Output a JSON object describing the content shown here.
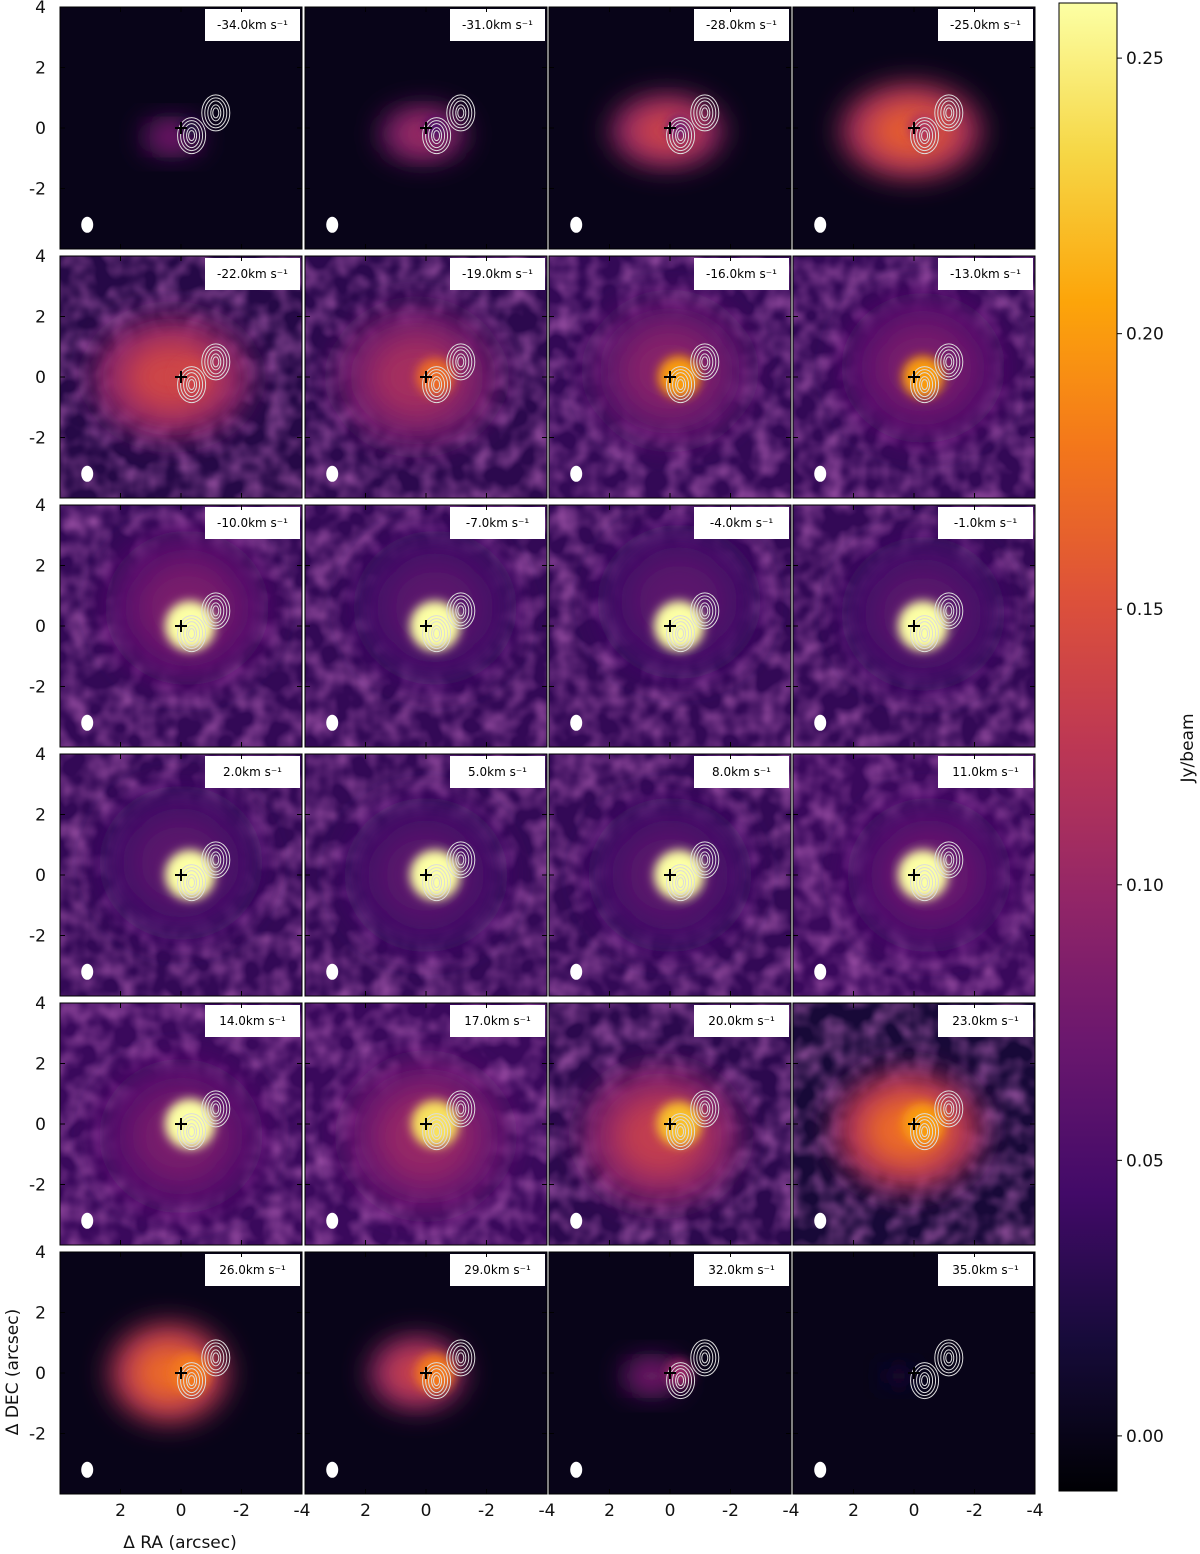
{
  "chart_data": {
    "type": "heatmap",
    "layout": {
      "rows": 6,
      "cols": 4
    },
    "xlabel": "Δ RA (arcsec)",
    "ylabel": "Δ DEC (arcsec)",
    "xlim": [
      4,
      -4
    ],
    "ylim": [
      -4,
      4
    ],
    "xticks": [
      2,
      0,
      -2,
      -4
    ],
    "xtick_labels": [
      "2",
      "0",
      "-2",
      "-4"
    ],
    "yticks": [
      4,
      2,
      0,
      -2
    ],
    "ytick_labels": [
      "4",
      "2",
      "0",
      "-2"
    ],
    "colorbar": {
      "label": "Jy/beam",
      "colormap": "inferno",
      "range": [
        -0.01,
        0.26
      ],
      "ticks": [
        0.0,
        0.05,
        0.1,
        0.15,
        0.2,
        0.25
      ],
      "tick_labels": [
        "0.00",
        "0.05",
        "0.10",
        "0.15",
        "0.20",
        "0.25"
      ]
    },
    "unit_suffix": "km s⁻¹",
    "panels": [
      {
        "velocity": -34.0,
        "label": "-34.0km s⁻¹",
        "peak": 0.09,
        "extent": [
          1.3,
          0.75
        ],
        "center": [
          0.3,
          -0.3
        ],
        "halo": 0.0,
        "core": 0.02
      },
      {
        "velocity": -31.0,
        "label": "-31.0km s⁻¹",
        "peak": 0.11,
        "extent": [
          1.9,
          1.2
        ],
        "center": [
          0.1,
          -0.2
        ],
        "halo": 0.0,
        "core": 0.05
      },
      {
        "velocity": -28.0,
        "label": "-28.0km s⁻¹",
        "peak": 0.14,
        "extent": [
          2.5,
          1.6
        ],
        "center": [
          0.1,
          -0.1
        ],
        "halo": 0.0,
        "core": 0.08
      },
      {
        "velocity": -25.0,
        "label": "-25.0km s⁻¹",
        "peak": 0.16,
        "extent": [
          3.1,
          2.1
        ],
        "center": [
          0.1,
          -0.1
        ],
        "halo": 0.0,
        "core": 0.12
      },
      {
        "velocity": -22.0,
        "label": "-22.0km s⁻¹",
        "peak": 0.14,
        "extent": [
          3.4,
          2.6
        ],
        "center": [
          0.3,
          0.0
        ],
        "halo": 0.03,
        "core": 0.14
      },
      {
        "velocity": -19.0,
        "label": "-19.0km s⁻¹",
        "peak": 0.11,
        "extent": [
          3.5,
          3.0
        ],
        "center": [
          0.3,
          0.0
        ],
        "halo": 0.035,
        "core": 0.17
      },
      {
        "velocity": -16.0,
        "label": "-16.0km s⁻¹",
        "peak": 0.09,
        "extent": [
          3.5,
          3.2
        ],
        "center": [
          0.0,
          0.2
        ],
        "halo": 0.04,
        "core": 0.2
      },
      {
        "velocity": -13.0,
        "label": "-13.0km s⁻¹",
        "peak": 0.08,
        "extent": [
          3.6,
          3.3
        ],
        "center": [
          -0.3,
          0.3
        ],
        "halo": 0.04,
        "core": 0.2
      },
      {
        "velocity": -10.0,
        "label": "-10.0km s⁻¹",
        "peak": 0.08,
        "extent": [
          3.6,
          3.4
        ],
        "center": [
          -0.2,
          0.6
        ],
        "halo": 0.04,
        "core": 0.26
      },
      {
        "velocity": -7.0,
        "label": "-7.0km s⁻¹",
        "peak": 0.06,
        "extent": [
          3.6,
          3.4
        ],
        "center": [
          -0.3,
          0.6
        ],
        "halo": 0.04,
        "core": 0.26
      },
      {
        "velocity": -4.0,
        "label": "-4.0km s⁻¹",
        "peak": 0.06,
        "extent": [
          3.6,
          3.4
        ],
        "center": [
          -0.3,
          0.8
        ],
        "halo": 0.04,
        "core": 0.26
      },
      {
        "velocity": -1.0,
        "label": "-1.0km s⁻¹",
        "peak": 0.06,
        "extent": [
          3.6,
          3.4
        ],
        "center": [
          -0.3,
          0.4
        ],
        "halo": 0.04,
        "core": 0.26
      },
      {
        "velocity": 2.0,
        "label": "2.0km s⁻¹",
        "peak": 0.06,
        "extent": [
          3.6,
          3.4
        ],
        "center": [
          0.0,
          0.4
        ],
        "halo": 0.04,
        "core": 0.26
      },
      {
        "velocity": 5.0,
        "label": "5.0km s⁻¹",
        "peak": 0.06,
        "extent": [
          3.6,
          3.4
        ],
        "center": [
          0.0,
          0.0
        ],
        "halo": 0.04,
        "core": 0.26
      },
      {
        "velocity": 8.0,
        "label": "8.0km s⁻¹",
        "peak": 0.06,
        "extent": [
          3.6,
          3.4
        ],
        "center": [
          0.0,
          0.0
        ],
        "halo": 0.04,
        "core": 0.26
      },
      {
        "velocity": 11.0,
        "label": "11.0km s⁻¹",
        "peak": 0.07,
        "extent": [
          3.6,
          3.4
        ],
        "center": [
          -0.5,
          0.0
        ],
        "halo": 0.045,
        "core": 0.26
      },
      {
        "velocity": 14.0,
        "label": "14.0km s⁻¹",
        "peak": 0.08,
        "extent": [
          3.6,
          3.4
        ],
        "center": [
          0.0,
          -0.4
        ],
        "halo": 0.045,
        "core": 0.26
      },
      {
        "velocity": 17.0,
        "label": "17.0km s⁻¹",
        "peak": 0.1,
        "extent": [
          3.6,
          3.4
        ],
        "center": [
          0.0,
          -0.4
        ],
        "halo": 0.045,
        "core": 0.24
      },
      {
        "velocity": 20.0,
        "label": "20.0km s⁻¹",
        "peak": 0.13,
        "extent": [
          3.4,
          3.0
        ],
        "center": [
          0.3,
          -0.4
        ],
        "halo": 0.035,
        "core": 0.22
      },
      {
        "velocity": 23.0,
        "label": "23.0km s⁻¹",
        "peak": 0.17,
        "extent": [
          3.2,
          2.6
        ],
        "center": [
          0.2,
          -0.2
        ],
        "halo": 0.02,
        "core": 0.2
      },
      {
        "velocity": 26.0,
        "label": "26.0km s⁻¹",
        "peak": 0.17,
        "extent": [
          2.6,
          2.2
        ],
        "center": [
          0.4,
          0.0
        ],
        "halo": 0.0,
        "core": 0.18
      },
      {
        "velocity": 29.0,
        "label": "29.0km s⁻¹",
        "peak": 0.14,
        "extent": [
          2.1,
          1.6
        ],
        "center": [
          0.3,
          0.0
        ],
        "halo": 0.0,
        "core": 0.18
      },
      {
        "velocity": 32.0,
        "label": "32.0km s⁻¹",
        "peak": 0.09,
        "extent": [
          1.3,
          0.8
        ],
        "center": [
          0.6,
          -0.1
        ],
        "halo": 0.0,
        "core": 0.1
      },
      {
        "velocity": 35.0,
        "label": "35.0km s⁻¹",
        "peak": 0.02,
        "extent": [
          0.8,
          0.5
        ],
        "center": [
          0.5,
          -0.1
        ],
        "halo": 0.0,
        "core": 0.0
      }
    ],
    "marker": {
      "symbol": "+",
      "ra": 0.0,
      "dec": 0.0
    },
    "contours": [
      {
        "name": "contour-source-a",
        "ra": -1.15,
        "dec": 0.5
      },
      {
        "name": "contour-source-b",
        "ra": -0.35,
        "dec": -0.25
      }
    ],
    "beam": {
      "ra": 3.1,
      "dec": -3.2
    }
  }
}
